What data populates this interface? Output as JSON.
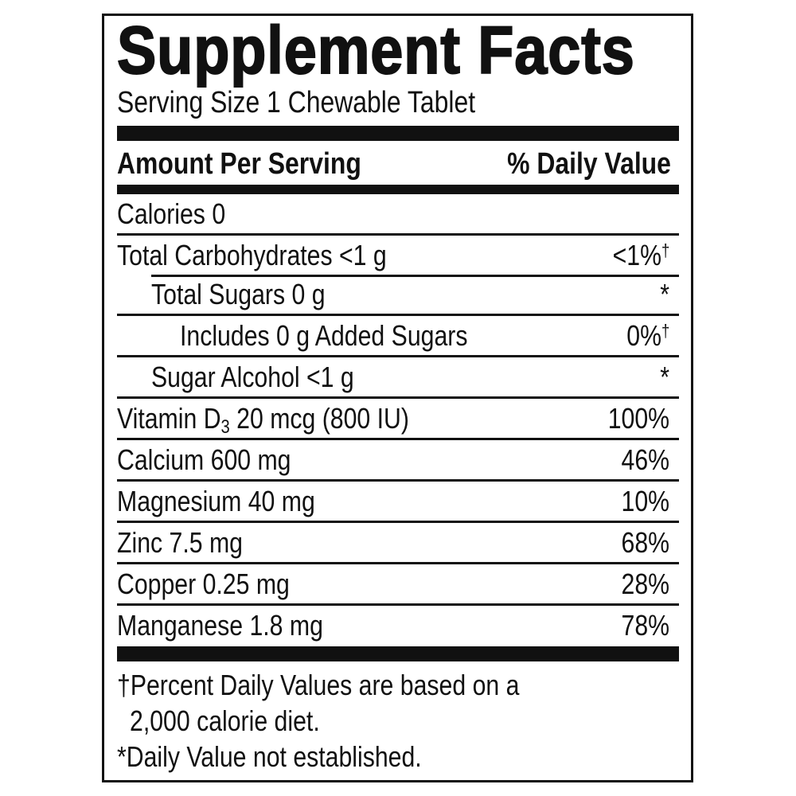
{
  "title": "Supplement Facts",
  "serving_size": "Serving Size 1 Chewable Tablet",
  "header": {
    "amount": "Amount Per Serving",
    "dv": "% Daily Value"
  },
  "rows": [
    {
      "label": "Calories 0",
      "dv": ""
    },
    {
      "label": "Total Carbohydrates <1 g",
      "dv": "<1%",
      "mark": "†"
    },
    {
      "label": "Total Sugars 0 g",
      "dv": "*"
    },
    {
      "label": "Includes 0 g Added Sugars",
      "dv": "0%",
      "mark": "†"
    },
    {
      "label": "Sugar Alcohol <1 g",
      "dv": "*"
    },
    {
      "label_pre": "Vitamin D",
      "label_sub": "3",
      "label_post": " 20 mcg (800 IU)",
      "dv": "100%"
    },
    {
      "label": "Calcium 600 mg",
      "dv": "46%"
    },
    {
      "label": "Magnesium 40 mg",
      "dv": "10%"
    },
    {
      "label": "Zinc 7.5 mg",
      "dv": "68%"
    },
    {
      "label": "Copper 0.25 mg",
      "dv": "28%"
    },
    {
      "label": "Manganese 1.8 mg",
      "dv": "78%"
    }
  ],
  "footnotes": {
    "line1": "†Percent Daily Values are based on a",
    "line2": "2,000 calorie diet.",
    "line3": "*Daily Value not established."
  }
}
